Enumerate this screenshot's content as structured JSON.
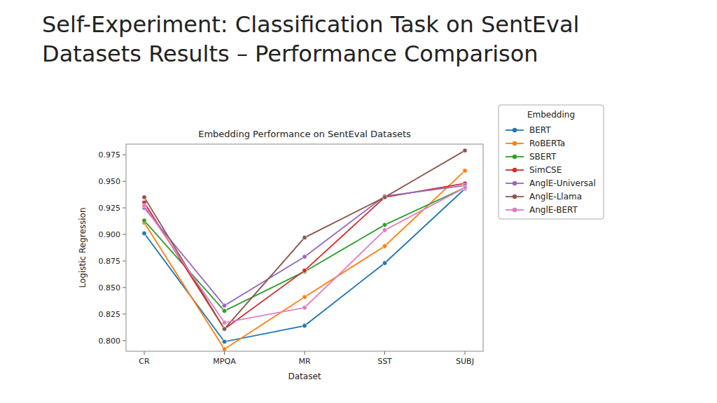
{
  "chart_data": {
    "type": "line",
    "title": "Self-Experiment: Classification Task on SentEval\nDatasets Results – Performance Comparison",
    "subtitle": "Embedding Performance on SentEval Datasets",
    "x_label": "Dataset",
    "y_label": "Logistic Regression",
    "legend_title": "Embedding",
    "categories": [
      "CR",
      "MPQA",
      "MR",
      "SST",
      "SUBJ"
    ],
    "series": [
      {
        "name": "BERT",
        "color": "#1f77b4",
        "values": [
          0.901,
          0.799,
          0.814,
          0.873,
          0.943
        ]
      },
      {
        "name": "RoBERTa",
        "color": "#ff7f0e",
        "values": [
          0.911,
          0.792,
          0.841,
          0.889,
          0.96
        ]
      },
      {
        "name": "SBERT",
        "color": "#2ca02c",
        "values": [
          0.913,
          0.828,
          0.865,
          0.909,
          0.944
        ]
      },
      {
        "name": "SimCSE",
        "color": "#d62728",
        "values": [
          0.93,
          0.811,
          0.866,
          0.935,
          0.948
        ]
      },
      {
        "name": "AnglE-Universal",
        "color": "#9467bd",
        "values": [
          0.925,
          0.833,
          0.879,
          0.936,
          0.946
        ]
      },
      {
        "name": "AnglE-Llama",
        "color": "#8c564b",
        "values": [
          0.935,
          0.811,
          0.897,
          0.935,
          0.979
        ]
      },
      {
        "name": "AnglE-BERT",
        "color": "#e377c2",
        "values": [
          0.927,
          0.817,
          0.831,
          0.904,
          0.944
        ]
      }
    ],
    "ylim": [
      0.79,
      0.985
    ],
    "yticks": [
      {
        "value": 0.8,
        "label": "0.800"
      },
      0.825,
      {
        "value": 0.85,
        "label": "0.850"
      },
      0.875,
      {
        "value": 0.9,
        "label": "0.900"
      },
      0.925,
      {
        "value": 0.95,
        "label": "0.950"
      },
      0.975
    ],
    "grid": false,
    "legend": "right",
    "marker": "circle",
    "line_style": "solid"
  }
}
